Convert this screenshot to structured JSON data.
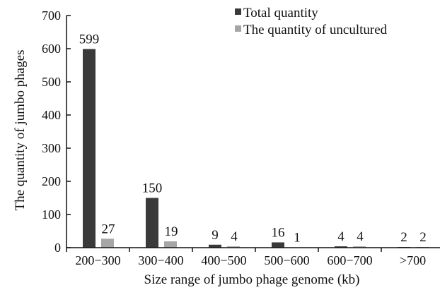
{
  "chart_data": {
    "type": "bar",
    "title": "",
    "xlabel": "Size range of jumbo phage genome (kb)",
    "ylabel": "The quantity of jumbo phages",
    "categories": [
      "200−300",
      "300−400",
      "400−500",
      "500−600",
      "600−700",
      ">700"
    ],
    "ylim": [
      0,
      700
    ],
    "yticks": [
      0,
      100,
      200,
      300,
      400,
      500,
      600,
      700
    ],
    "grid": false,
    "legend_position": "top-right",
    "series": [
      {
        "name": "Total quantity",
        "color": "#3a3a3a",
        "values": [
          599,
          150,
          9,
          16,
          4,
          2
        ],
        "labels": [
          "599",
          "150",
          "9",
          "16",
          "4",
          "2"
        ]
      },
      {
        "name": "The quantity of uncultured",
        "color": "#a6a6a6",
        "values": [
          27,
          19,
          4,
          1,
          4,
          2
        ],
        "labels": [
          "27",
          "19",
          "4",
          "1",
          "4",
          "2"
        ]
      }
    ]
  }
}
